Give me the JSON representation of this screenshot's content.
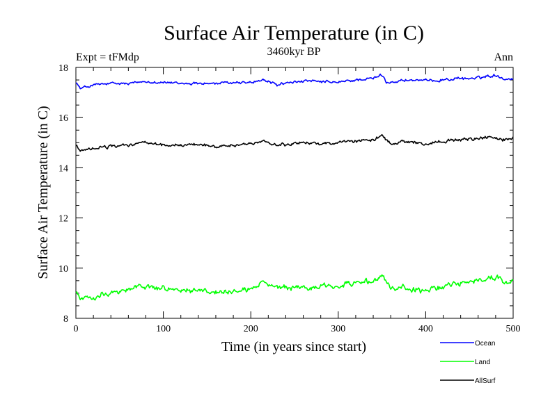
{
  "chart_data": {
    "type": "line",
    "title": "Surface Air Temperature (in C)",
    "subtitle": "3460kyr BP",
    "left_label": "Expt = tFMdp",
    "right_label": "Ann",
    "xlabel": "Time (in years since start)",
    "ylabel": "Surface Air Temperature (in C)",
    "xlim": [
      0,
      500
    ],
    "ylim": [
      8,
      18
    ],
    "x_ticks": [
      0,
      100,
      200,
      300,
      400,
      500
    ],
    "y_ticks": [
      8,
      10,
      12,
      14,
      16,
      18
    ],
    "x_step": 1,
    "series": [
      {
        "name": "Ocean",
        "color": "#0000ff",
        "anchors": [
          [
            0,
            17.45
          ],
          [
            5,
            17.15
          ],
          [
            10,
            17.2
          ],
          [
            20,
            17.3
          ],
          [
            40,
            17.35
          ],
          [
            60,
            17.35
          ],
          [
            80,
            17.45
          ],
          [
            100,
            17.4
          ],
          [
            120,
            17.35
          ],
          [
            140,
            17.38
          ],
          [
            160,
            17.35
          ],
          [
            180,
            17.4
          ],
          [
            200,
            17.4
          ],
          [
            215,
            17.5
          ],
          [
            230,
            17.3
          ],
          [
            240,
            17.38
          ],
          [
            260,
            17.45
          ],
          [
            280,
            17.42
          ],
          [
            300,
            17.4
          ],
          [
            320,
            17.5
          ],
          [
            340,
            17.55
          ],
          [
            350,
            17.7
          ],
          [
            355,
            17.4
          ],
          [
            380,
            17.5
          ],
          [
            400,
            17.45
          ],
          [
            420,
            17.52
          ],
          [
            440,
            17.55
          ],
          [
            460,
            17.58
          ],
          [
            470,
            17.65
          ],
          [
            480,
            17.7
          ],
          [
            490,
            17.55
          ],
          [
            500,
            17.55
          ]
        ],
        "noise": 0.09
      },
      {
        "name": "Land",
        "color": "#00ff00",
        "anchors": [
          [
            0,
            9.1
          ],
          [
            5,
            8.75
          ],
          [
            10,
            8.8
          ],
          [
            20,
            8.85
          ],
          [
            30,
            9.0
          ],
          [
            40,
            9.05
          ],
          [
            50,
            9.1
          ],
          [
            60,
            9.15
          ],
          [
            75,
            9.3
          ],
          [
            90,
            9.2
          ],
          [
            100,
            9.2
          ],
          [
            120,
            9.15
          ],
          [
            140,
            9.1
          ],
          [
            160,
            9.05
          ],
          [
            180,
            9.0
          ],
          [
            200,
            9.15
          ],
          [
            215,
            9.45
          ],
          [
            230,
            9.2
          ],
          [
            260,
            9.2
          ],
          [
            280,
            9.25
          ],
          [
            300,
            9.3
          ],
          [
            320,
            9.4
          ],
          [
            340,
            9.45
          ],
          [
            350,
            9.7
          ],
          [
            360,
            9.2
          ],
          [
            380,
            9.2
          ],
          [
            400,
            9.05
          ],
          [
            420,
            9.3
          ],
          [
            440,
            9.4
          ],
          [
            460,
            9.5
          ],
          [
            480,
            9.65
          ],
          [
            490,
            9.45
          ],
          [
            500,
            9.5
          ]
        ],
        "noise": 0.17
      },
      {
        "name": "AllSurf",
        "color": "#000000",
        "anchors": [
          [
            0,
            14.9
          ],
          [
            5,
            14.65
          ],
          [
            10,
            14.7
          ],
          [
            20,
            14.75
          ],
          [
            40,
            14.85
          ],
          [
            60,
            14.9
          ],
          [
            75,
            15.0
          ],
          [
            100,
            14.9
          ],
          [
            120,
            14.9
          ],
          [
            140,
            14.95
          ],
          [
            160,
            14.85
          ],
          [
            180,
            14.9
          ],
          [
            200,
            14.95
          ],
          [
            215,
            15.1
          ],
          [
            230,
            14.9
          ],
          [
            260,
            15.0
          ],
          [
            280,
            14.95
          ],
          [
            300,
            15.0
          ],
          [
            320,
            15.05
          ],
          [
            340,
            15.1
          ],
          [
            350,
            15.3
          ],
          [
            360,
            14.95
          ],
          [
            380,
            15.05
          ],
          [
            400,
            14.95
          ],
          [
            420,
            15.05
          ],
          [
            440,
            15.1
          ],
          [
            460,
            15.15
          ],
          [
            475,
            15.25
          ],
          [
            490,
            15.1
          ],
          [
            500,
            15.2
          ]
        ],
        "noise": 0.1
      }
    ]
  }
}
